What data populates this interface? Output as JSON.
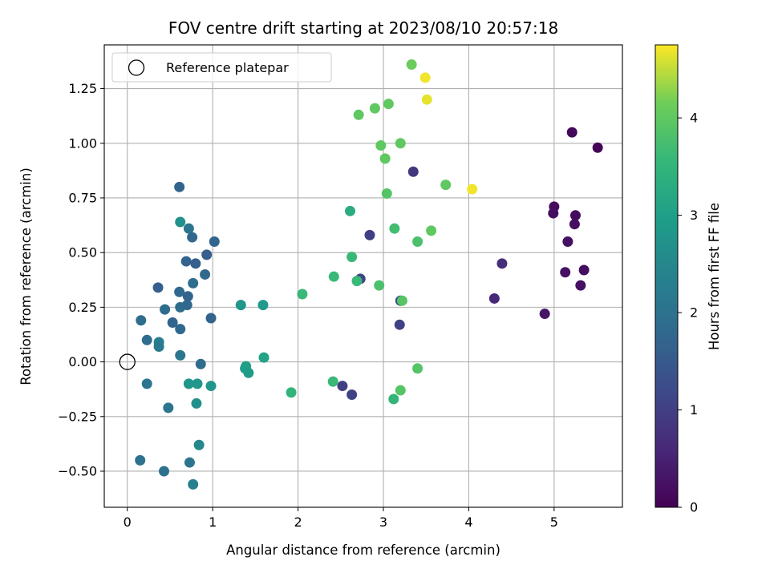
{
  "chart_data": {
    "type": "scatter",
    "title": "FOV centre drift starting at 2023/08/10 20:57:18",
    "xlabel": "Angular distance from reference (arcmin)",
    "ylabel": "Rotation from reference (arcmin)",
    "xlim": [
      -0.27,
      5.8
    ],
    "ylim": [
      -0.665,
      1.45
    ],
    "xticks": [
      0,
      1,
      2,
      3,
      4,
      5
    ],
    "xtick_labels": [
      "0",
      "1",
      "2",
      "3",
      "4",
      "5"
    ],
    "yticks": [
      -0.5,
      -0.25,
      0.0,
      0.25,
      0.5,
      0.75,
      1.0,
      1.25
    ],
    "ytick_labels": [
      "−0.50",
      "−0.25",
      "0.00",
      "0.25",
      "0.50",
      "0.75",
      "1.00",
      "1.25"
    ],
    "grid": true,
    "colormap": "viridis",
    "colorbar": {
      "label": "Hours from first FF file",
      "range": [
        0,
        4.75
      ],
      "ticks": [
        0,
        1,
        2,
        3,
        4
      ],
      "tick_labels": [
        "0",
        "1",
        "2",
        "3",
        "4"
      ]
    },
    "legend": {
      "location": "upper-left",
      "entries": [
        {
          "label": "Reference platepar",
          "marker": "open-circle"
        }
      ]
    },
    "reference_point": {
      "x": 0.0,
      "y": 0.0
    },
    "series": [
      {
        "points": [
          {
            "x": 5.51,
            "y": 0.98,
            "c": 0.05
          },
          {
            "x": 5.21,
            "y": 1.05,
            "c": 0.1
          },
          {
            "x": 5.0,
            "y": 0.71,
            "c": 0.15
          },
          {
            "x": 4.99,
            "y": 0.68,
            "c": 0.2
          },
          {
            "x": 5.25,
            "y": 0.67,
            "c": 0.15
          },
          {
            "x": 5.24,
            "y": 0.63,
            "c": 0.2
          },
          {
            "x": 5.16,
            "y": 0.55,
            "c": 0.25
          },
          {
            "x": 5.13,
            "y": 0.41,
            "c": 0.25
          },
          {
            "x": 5.35,
            "y": 0.42,
            "c": 0.2
          },
          {
            "x": 5.31,
            "y": 0.35,
            "c": 0.25
          },
          {
            "x": 4.89,
            "y": 0.22,
            "c": 0.3
          },
          {
            "x": 4.3,
            "y": 0.29,
            "c": 0.6
          },
          {
            "x": 4.39,
            "y": 0.45,
            "c": 0.7
          },
          {
            "x": 3.35,
            "y": 0.87,
            "c": 0.85
          },
          {
            "x": 2.84,
            "y": 0.58,
            "c": 1.0
          },
          {
            "x": 2.73,
            "y": 0.38,
            "c": 1.1
          },
          {
            "x": 3.19,
            "y": 0.17,
            "c": 1.05
          },
          {
            "x": 3.2,
            "y": 0.28,
            "c": 1.2
          },
          {
            "x": 2.52,
            "y": -0.11,
            "c": 1.0
          },
          {
            "x": 2.63,
            "y": -0.15,
            "c": 1.05
          },
          {
            "x": 0.61,
            "y": 0.8,
            "c": 1.7
          },
          {
            "x": 0.72,
            "y": 0.61,
            "c": 2.1
          },
          {
            "x": 0.76,
            "y": 0.57,
            "c": 1.8
          },
          {
            "x": 1.02,
            "y": 0.55,
            "c": 1.7
          },
          {
            "x": 0.93,
            "y": 0.49,
            "c": 1.6
          },
          {
            "x": 0.69,
            "y": 0.46,
            "c": 1.7
          },
          {
            "x": 0.8,
            "y": 0.45,
            "c": 1.6
          },
          {
            "x": 0.91,
            "y": 0.4,
            "c": 1.8
          },
          {
            "x": 0.77,
            "y": 0.36,
            "c": 1.9
          },
          {
            "x": 0.36,
            "y": 0.34,
            "c": 1.6
          },
          {
            "x": 0.61,
            "y": 0.32,
            "c": 1.8
          },
          {
            "x": 0.71,
            "y": 0.3,
            "c": 1.7
          },
          {
            "x": 0.62,
            "y": 0.25,
            "c": 1.9
          },
          {
            "x": 0.7,
            "y": 0.26,
            "c": 1.8
          },
          {
            "x": 0.44,
            "y": 0.24,
            "c": 1.9
          },
          {
            "x": 0.98,
            "y": 0.2,
            "c": 1.7
          },
          {
            "x": 0.53,
            "y": 0.18,
            "c": 1.7
          },
          {
            "x": 0.16,
            "y": 0.19,
            "c": 1.9
          },
          {
            "x": 0.62,
            "y": 0.15,
            "c": 1.8
          },
          {
            "x": 0.23,
            "y": 0.1,
            "c": 1.9
          },
          {
            "x": 0.37,
            "y": 0.09,
            "c": 2.3
          },
          {
            "x": 0.37,
            "y": 0.07,
            "c": 2.2
          },
          {
            "x": 0.62,
            "y": 0.03,
            "c": 2.1
          },
          {
            "x": 0.86,
            "y": -0.01,
            "c": 1.9
          },
          {
            "x": 0.23,
            "y": -0.1,
            "c": 2.1
          },
          {
            "x": 0.48,
            "y": -0.21,
            "c": 2.1
          },
          {
            "x": 0.15,
            "y": -0.45,
            "c": 2.0
          },
          {
            "x": 0.43,
            "y": -0.5,
            "c": 2.0
          },
          {
            "x": 0.73,
            "y": -0.46,
            "c": 2.1
          },
          {
            "x": 0.77,
            "y": -0.56,
            "c": 2.3
          },
          {
            "x": 0.84,
            "y": -0.38,
            "c": 2.5
          },
          {
            "x": 0.81,
            "y": -0.19,
            "c": 2.7
          },
          {
            "x": 0.72,
            "y": -0.1,
            "c": 2.8
          },
          {
            "x": 0.82,
            "y": -0.1,
            "c": 2.8
          },
          {
            "x": 0.98,
            "y": -0.11,
            "c": 2.8
          },
          {
            "x": 0.62,
            "y": 0.64,
            "c": 2.7
          },
          {
            "x": 1.33,
            "y": 0.26,
            "c": 2.8
          },
          {
            "x": 1.59,
            "y": 0.26,
            "c": 2.9
          },
          {
            "x": 1.38,
            "y": -0.03,
            "c": 2.9
          },
          {
            "x": 1.39,
            "y": -0.02,
            "c": 3.0
          },
          {
            "x": 1.42,
            "y": -0.05,
            "c": 2.9
          },
          {
            "x": 1.6,
            "y": 0.02,
            "c": 3.1
          },
          {
            "x": 1.92,
            "y": -0.14,
            "c": 3.5
          },
          {
            "x": 2.05,
            "y": 0.31,
            "c": 3.6
          },
          {
            "x": 2.41,
            "y": -0.09,
            "c": 3.6
          },
          {
            "x": 2.42,
            "y": 0.39,
            "c": 3.6
          },
          {
            "x": 2.61,
            "y": 0.69,
            "c": 3.3
          },
          {
            "x": 2.63,
            "y": 0.48,
            "c": 3.6
          },
          {
            "x": 2.69,
            "y": 0.37,
            "c": 3.6
          },
          {
            "x": 2.95,
            "y": 0.35,
            "c": 3.8
          },
          {
            "x": 3.12,
            "y": -0.17,
            "c": 3.5
          },
          {
            "x": 3.2,
            "y": -0.13,
            "c": 3.9
          },
          {
            "x": 3.22,
            "y": 0.28,
            "c": 3.9
          },
          {
            "x": 3.13,
            "y": 0.61,
            "c": 3.7
          },
          {
            "x": 3.04,
            "y": 0.77,
            "c": 3.9
          },
          {
            "x": 3.4,
            "y": 0.55,
            "c": 3.8
          },
          {
            "x": 3.56,
            "y": 0.6,
            "c": 4.0
          },
          {
            "x": 3.4,
            "y": -0.03,
            "c": 3.9
          },
          {
            "x": 3.73,
            "y": 0.81,
            "c": 4.0
          },
          {
            "x": 3.02,
            "y": 0.93,
            "c": 4.0
          },
          {
            "x": 2.97,
            "y": 0.99,
            "c": 4.0
          },
          {
            "x": 3.2,
            "y": 1.0,
            "c": 4.0
          },
          {
            "x": 2.71,
            "y": 1.13,
            "c": 4.0
          },
          {
            "x": 2.9,
            "y": 1.16,
            "c": 4.0
          },
          {
            "x": 3.06,
            "y": 1.18,
            "c": 4.0
          },
          {
            "x": 3.33,
            "y": 1.36,
            "c": 4.1
          },
          {
            "x": 3.49,
            "y": 1.3,
            "c": 4.7
          },
          {
            "x": 3.51,
            "y": 1.2,
            "c": 4.65
          },
          {
            "x": 4.04,
            "y": 0.79,
            "c": 4.7
          }
        ]
      }
    ]
  }
}
